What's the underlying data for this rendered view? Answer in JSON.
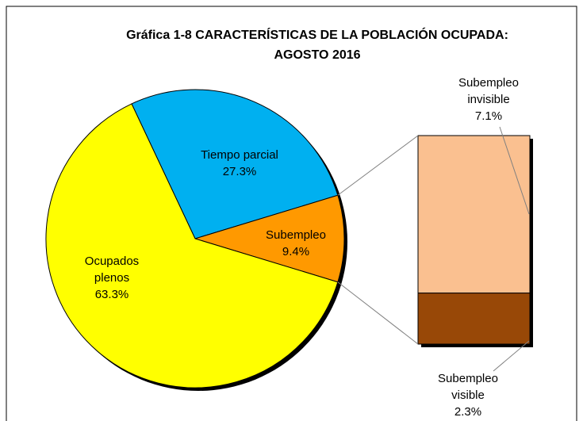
{
  "chart_data": {
    "type": "pie-of-bar",
    "title": "Gráfica 1-8 CARACTERÍSTICAS DE LA POBLACIÓN OCUPADA: AGOSTO 2016",
    "pie": {
      "categories": [
        "Tiempo parcial",
        "Subempleo",
        "Ocupados plenos"
      ],
      "values": [
        27.3,
        9.4,
        63.3
      ],
      "value_labels": [
        "27.3%",
        "9.4%",
        "63.3%"
      ],
      "colors": [
        "#00b0f0",
        "#ff9900",
        "#ffff00"
      ]
    },
    "bar": {
      "categories": [
        "Subempleo invisible",
        "Subempleo visible"
      ],
      "values": [
        7.1,
        2.3
      ],
      "value_labels": [
        "7.1%",
        "2.3%"
      ],
      "colors": [
        "#fac090",
        "#984807"
      ]
    }
  }
}
